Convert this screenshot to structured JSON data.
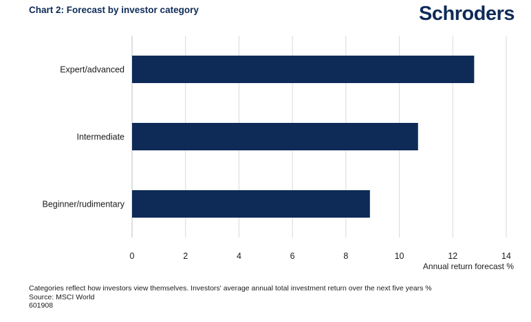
{
  "header": {
    "title": "Chart 2: Forecast by investor category",
    "brand": "Schroders"
  },
  "chart_data": {
    "type": "bar",
    "orientation": "horizontal",
    "categories": [
      "Expert/advanced",
      "Intermediate",
      "Beginner/rudimentary"
    ],
    "values": [
      12.8,
      10.7,
      8.9
    ],
    "xlabel": "Annual return forecast %",
    "ylabel": "",
    "xlim": [
      0,
      14
    ],
    "xticks": [
      0,
      2,
      4,
      6,
      8,
      10,
      12,
      14
    ],
    "grid": "vertical",
    "bar_color": "#0e2b58",
    "grid_color": "#d9d9d9"
  },
  "footer": {
    "note": "Categories reflect how investors view themselves. Investors' average annual total investment return over the next five years %",
    "source": "Source: MSCI World",
    "code": "601908"
  }
}
